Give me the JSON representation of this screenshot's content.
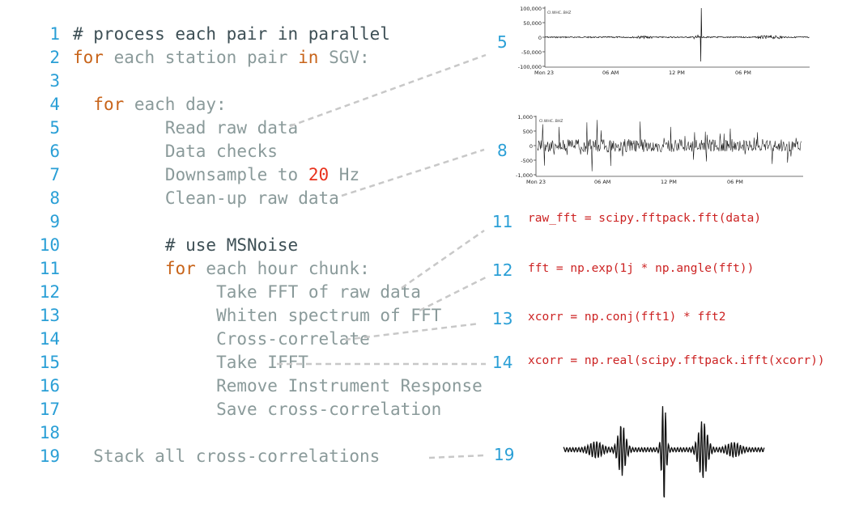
{
  "code_lines": [
    {
      "num": "1",
      "indent": 0,
      "parts": [
        {
          "t": "# process each pair in parallel",
          "c": "dark"
        }
      ]
    },
    {
      "num": "2",
      "indent": 0,
      "parts": [
        {
          "t": "for",
          "c": "kw"
        },
        {
          "t": " each station pair ",
          "c": ""
        },
        {
          "t": "in",
          "c": "kw"
        },
        {
          "t": " SGV:",
          "c": ""
        }
      ]
    },
    {
      "num": "3",
      "indent": 0,
      "parts": []
    },
    {
      "num": "4",
      "indent": 2,
      "parts": [
        {
          "t": "for",
          "c": "kw"
        },
        {
          "t": " each day:",
          "c": ""
        }
      ]
    },
    {
      "num": "5",
      "indent": 9,
      "parts": [
        {
          "t": "Read raw data",
          "c": ""
        }
      ]
    },
    {
      "num": "6",
      "indent": 9,
      "parts": [
        {
          "t": "Data checks",
          "c": ""
        }
      ]
    },
    {
      "num": "7",
      "indent": 9,
      "parts": [
        {
          "t": "Downsample to ",
          "c": ""
        },
        {
          "t": "20",
          "c": "num"
        },
        {
          "t": " Hz",
          "c": ""
        }
      ]
    },
    {
      "num": "8",
      "indent": 9,
      "parts": [
        {
          "t": "Clean-up raw data",
          "c": ""
        }
      ]
    },
    {
      "num": "9",
      "indent": 0,
      "parts": []
    },
    {
      "num": "10",
      "indent": 9,
      "parts": [
        {
          "t": "# use MSNoise",
          "c": "dark"
        }
      ]
    },
    {
      "num": "11",
      "indent": 9,
      "parts": [
        {
          "t": "for",
          "c": "kw"
        },
        {
          "t": " each hour chunk:",
          "c": ""
        }
      ]
    },
    {
      "num": "12",
      "indent": 14,
      "parts": [
        {
          "t": "Take FFT of raw data",
          "c": ""
        }
      ]
    },
    {
      "num": "13",
      "indent": 14,
      "parts": [
        {
          "t": "Whiten spectrum of FFT",
          "c": ""
        }
      ]
    },
    {
      "num": "14",
      "indent": 14,
      "parts": [
        {
          "t": "Cross-correlate",
          "c": ""
        }
      ]
    },
    {
      "num": "15",
      "indent": 14,
      "parts": [
        {
          "t": "Take IFFT",
          "c": ""
        }
      ]
    },
    {
      "num": "16",
      "indent": 14,
      "parts": [
        {
          "t": "Remove Instrument Response",
          "c": ""
        }
      ]
    },
    {
      "num": "17",
      "indent": 14,
      "parts": [
        {
          "t": "Save cross-correlation",
          "c": ""
        }
      ]
    },
    {
      "num": "18",
      "indent": 0,
      "parts": []
    },
    {
      "num": "19",
      "indent": 2,
      "parts": [
        {
          "t": "Stack all cross-correlations",
          "c": ""
        }
      ]
    }
  ],
  "labels": {
    "l5": "5",
    "l8": "8",
    "l11": "11",
    "l12": "12",
    "l13": "13",
    "l14": "14",
    "l19": "19"
  },
  "snippets": {
    "s11": "raw_fft = scipy.fftpack.fft(data)",
    "s12": "fft = np.exp(1j * np.angle(fft))",
    "s13": "xcorr = np.conj(fft1) * fft2",
    "s14": "xcorr = np.real(scipy.fftpack.ifft(xcorr))"
  },
  "raw_plot": {
    "y_ticks": [
      "100,000",
      "50,000",
      "0",
      "-50,000",
      "-100,000"
    ],
    "x_ticks": [
      "Mon 23",
      "06 AM",
      "12 PM",
      "06 PM"
    ],
    "legend": "CI.WHC..BHZ"
  },
  "clean_plot": {
    "y_ticks": [
      "1,000",
      "500",
      "0",
      "-500",
      "-1,000"
    ],
    "x_ticks": [
      "Mon 23",
      "06 AM",
      "12 PM",
      "06 PM"
    ],
    "legend": "CI.WHC..BHZ"
  },
  "colors": {
    "line_number": "#2a9fd6",
    "keyword": "#c8641a",
    "number": "#e8321d",
    "code_text": "#8a9a9a",
    "comment": "#3d4f55",
    "snippet": "#cc2222",
    "connector": "#c8c8c8"
  }
}
